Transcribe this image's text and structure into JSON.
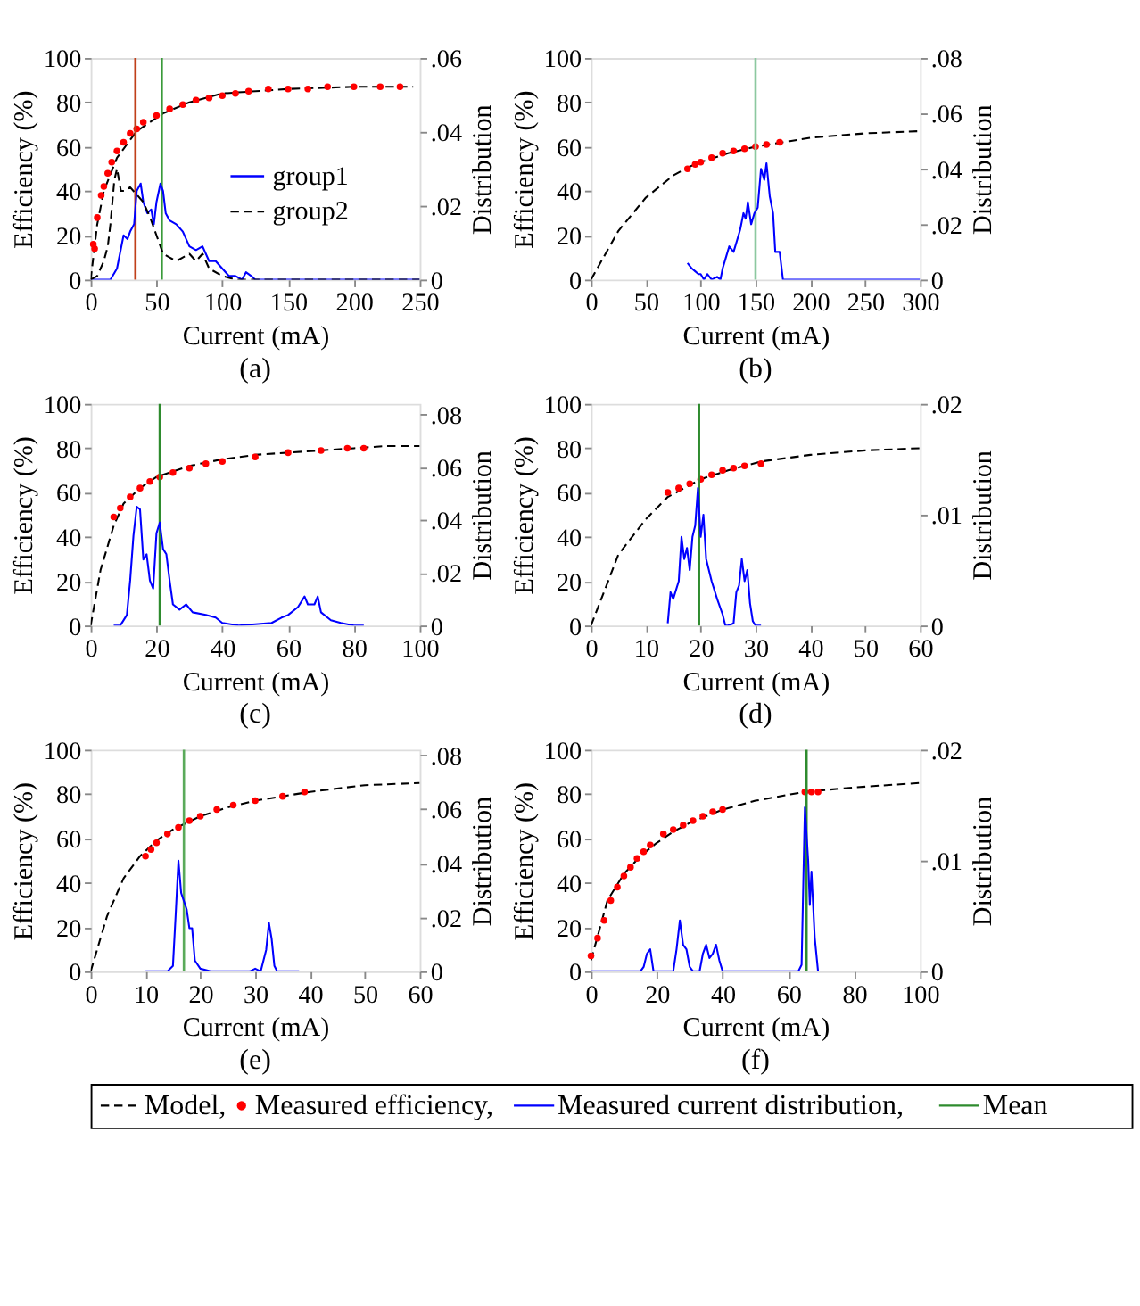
{
  "chart_data": [
    {
      "type": "line",
      "title": "(a)",
      "xlabel": "Current (mA)",
      "ylabel": "Efficiency (%)",
      "y2label": "Distribution",
      "xlim": [
        0,
        250
      ],
      "xticks": [
        0,
        50,
        100,
        150,
        200,
        250
      ],
      "ylim": [
        0,
        100
      ],
      "yticks": [
        0,
        20,
        40,
        60,
        80,
        100
      ],
      "y2lim": [
        0,
        0.06
      ],
      "y2ticks": [
        0,
        {
          "value": 0.02,
          "label": ".02"
        },
        {
          "value": 0.04,
          "label": ".04"
        },
        {
          "value": 0.06,
          "label": ".06"
        }
      ],
      "legend": "right",
      "series": [
        {
          "type": "line",
          "line_style": "dashed",
          "color": "#000000",
          "x": [
            0,
            5,
            10,
            20,
            35,
            55,
            75,
            100,
            150,
            200,
            245
          ],
          "values": [
            0,
            25,
            40,
            55,
            67,
            75,
            80,
            84,
            86,
            87,
            87
          ]
        },
        {
          "type": "scatter",
          "marker": "circle",
          "color": "#ff0000",
          "x": [
            2,
            3,
            5,
            8,
            10,
            13,
            16,
            20,
            25,
            30,
            35,
            40,
            50,
            60,
            70,
            80,
            90,
            100,
            110,
            120,
            135,
            150,
            165,
            180,
            200,
            220,
            235
          ],
          "values": [
            16,
            14,
            28,
            38,
            42,
            48,
            53,
            58,
            62,
            66,
            68,
            71,
            74,
            77,
            79,
            81,
            82,
            83,
            84,
            85,
            86,
            86,
            86,
            87,
            87,
            87,
            87
          ]
        },
        {
          "name": "group1",
          "type": "line",
          "axis": "y2",
          "line_style": "solid",
          "color": "#0000ff",
          "x": [
            0,
            15,
            20,
            25,
            28,
            30,
            33,
            35,
            38,
            40,
            43,
            46,
            48,
            50,
            53,
            55,
            57,
            60,
            65,
            70,
            75,
            80,
            85,
            90,
            95,
            100,
            105,
            110,
            115,
            118,
            122,
            125,
            150,
            200,
            250
          ],
          "values": [
            0,
            0,
            0.003,
            0.012,
            0.011,
            0.013,
            0.015,
            0.024,
            0.026,
            0.021,
            0.018,
            0.019,
            0.015,
            0.021,
            0.026,
            0.024,
            0.018,
            0.016,
            0.015,
            0.013,
            0.009,
            0.008,
            0.009,
            0.005,
            0.005,
            0.003,
            0.001,
            0.001,
            0,
            0.002,
            0.001,
            0,
            0,
            0,
            0
          ]
        },
        {
          "name": "group2",
          "type": "line",
          "axis": "y2",
          "line_style": "dashed",
          "color": "#000000",
          "x": [
            0,
            5,
            10,
            13,
            15,
            18,
            20,
            23,
            26,
            30,
            35,
            40,
            45,
            50,
            55,
            60,
            65,
            70,
            75,
            80,
            85,
            90,
            100,
            110,
            150,
            250
          ],
          "values": [
            0,
            0.001,
            0.005,
            0.009,
            0.015,
            0.027,
            0.03,
            0.024,
            0.024,
            0.025,
            0.023,
            0.021,
            0.017,
            0.012,
            0.007,
            0.006,
            0.005,
            0.006,
            0.007,
            0.005,
            0.007,
            0.003,
            0.001,
            0,
            0,
            0
          ]
        }
      ],
      "ref_lines": [
        {
          "axis": "x",
          "value": 34,
          "color": "#c0401a"
        },
        {
          "axis": "x",
          "value": 54,
          "color": "#3a9a3a"
        }
      ]
    },
    {
      "type": "line",
      "title": "(b)",
      "xlabel": "Current (mA)",
      "ylabel": "Efficiency (%)",
      "y2label": "Distribution",
      "xlim": [
        0,
        300
      ],
      "xticks": [
        0,
        50,
        100,
        150,
        200,
        250,
        300
      ],
      "ylim": [
        0,
        100
      ],
      "yticks": [
        0,
        20,
        40,
        60,
        80,
        100
      ],
      "y2lim": [
        0,
        0.08
      ],
      "y2ticks": [
        0,
        {
          "value": 0.02,
          "label": ".02"
        },
        {
          "value": 0.04,
          "label": ".04"
        },
        {
          "value": 0.06,
          "label": ".06"
        },
        {
          "value": 0.08,
          "label": ".08"
        }
      ],
      "series": [
        {
          "type": "line",
          "line_style": "dashed",
          "color": "#000000",
          "x": [
            0,
            25,
            50,
            75,
            90,
            100,
            125,
            150,
            175,
            200,
            250,
            300
          ],
          "values": [
            0,
            22,
            37,
            47,
            51,
            53,
            57,
            60,
            62,
            64,
            66,
            67
          ]
        },
        {
          "type": "scatter",
          "marker": "circle",
          "color": "#ff0000",
          "x": [
            88,
            95,
            100,
            110,
            120,
            130,
            140,
            150,
            160,
            172
          ],
          "values": [
            50,
            52,
            53,
            55,
            57,
            58,
            59,
            60,
            61,
            62
          ]
        },
        {
          "type": "line",
          "axis": "y2",
          "line_style": "solid",
          "color": "#0000ff",
          "x": [
            88,
            92,
            95,
            98,
            100,
            103,
            106,
            110,
            115,
            118,
            120,
            123,
            126,
            130,
            133,
            136,
            139,
            141,
            143,
            146,
            149,
            152,
            155,
            158,
            160,
            163,
            166,
            168,
            172,
            175,
            200,
            300
          ],
          "values": [
            0.006,
            0.004,
            0.003,
            0.002,
            0.002,
            0,
            0.002,
            0,
            0.001,
            0,
            0.004,
            0.008,
            0.012,
            0.01,
            0.014,
            0.018,
            0.024,
            0.022,
            0.028,
            0.02,
            0.024,
            0.026,
            0.04,
            0.036,
            0.042,
            0.03,
            0.024,
            0.01,
            0.01,
            0,
            0,
            0
          ]
        }
      ],
      "ref_lines": [
        {
          "axis": "x",
          "value": 150,
          "color": "#8cc8a0"
        }
      ]
    },
    {
      "type": "line",
      "title": "(c)",
      "xlabel": "Current (mA)",
      "ylabel": "Efficiency (%)",
      "y2label": "Distribution",
      "xlim": [
        0,
        100
      ],
      "xticks": [
        0,
        20,
        40,
        60,
        80,
        100
      ],
      "ylim": [
        0,
        100
      ],
      "yticks": [
        0,
        20,
        40,
        60,
        80,
        100
      ],
      "y2lim": [
        0,
        0.084
      ],
      "y2ticks": [
        0,
        {
          "value": 0.02,
          "label": ".02"
        },
        {
          "value": 0.04,
          "label": ".04"
        },
        {
          "value": 0.06,
          "label": ".06"
        },
        {
          "value": 0.08,
          "label": ".08"
        }
      ],
      "series": [
        {
          "type": "line",
          "line_style": "dashed",
          "color": "#000000",
          "x": [
            0,
            3,
            7,
            10,
            15,
            20,
            30,
            40,
            50,
            60,
            70,
            80,
            90,
            100
          ],
          "values": [
            0,
            25,
            45,
            55,
            62,
            67,
            72,
            75,
            77,
            78,
            79,
            80,
            81,
            81
          ]
        },
        {
          "type": "scatter",
          "marker": "circle",
          "color": "#ff0000",
          "x": [
            7,
            9,
            12,
            15,
            18,
            21,
            25,
            30,
            35,
            40,
            50,
            60,
            70,
            78,
            83
          ],
          "values": [
            49,
            53,
            58,
            62,
            65,
            67,
            69,
            71,
            73,
            74,
            76,
            78,
            79,
            80,
            80
          ]
        },
        {
          "type": "line",
          "axis": "y2",
          "line_style": "solid",
          "color": "#0000ff",
          "x": [
            7,
            9,
            11,
            12,
            13,
            14,
            15,
            16,
            17,
            18,
            19,
            20,
            21,
            22,
            23,
            24,
            25,
            27,
            29,
            31,
            35,
            38,
            40,
            45,
            55,
            58,
            60,
            63,
            65,
            66,
            68,
            69,
            70,
            73,
            76,
            80,
            83
          ],
          "values": [
            0,
            0,
            0.004,
            0.017,
            0.034,
            0.045,
            0.044,
            0.025,
            0.027,
            0.017,
            0.014,
            0.035,
            0.039,
            0.029,
            0.027,
            0.017,
            0.008,
            0.006,
            0.008,
            0.005,
            0.004,
            0.003,
            0.001,
            0,
            0.001,
            0.003,
            0.004,
            0.007,
            0.011,
            0.008,
            0.008,
            0.011,
            0.005,
            0.002,
            0.001,
            0,
            0
          ]
        }
      ],
      "ref_lines": [
        {
          "axis": "x",
          "value": 21,
          "color": "#2e8b2e"
        }
      ]
    },
    {
      "type": "line",
      "title": "(d)",
      "xlabel": "Current (mA)",
      "ylabel": "Efficiency (%)",
      "y2label": "Distribution",
      "xlim": [
        0,
        60
      ],
      "xticks": [
        0,
        10,
        20,
        30,
        40,
        50,
        60
      ],
      "ylim": [
        0,
        100
      ],
      "yticks": [
        0,
        20,
        40,
        60,
        80,
        100
      ],
      "y2lim": [
        0,
        0.02
      ],
      "y2ticks": [
        0,
        {
          "value": 0.01,
          "label": ".01"
        },
        {
          "value": 0.02,
          "label": ".02"
        }
      ],
      "series": [
        {
          "type": "line",
          "line_style": "dashed",
          "color": "#000000",
          "x": [
            0,
            5,
            10,
            14,
            20,
            25,
            31,
            40,
            50,
            60
          ],
          "values": [
            0,
            32,
            48,
            58,
            66,
            70,
            74,
            77,
            79,
            80
          ]
        },
        {
          "type": "scatter",
          "marker": "circle",
          "color": "#ff0000",
          "x": [
            14,
            16,
            18,
            20,
            22,
            24,
            26,
            28,
            31
          ],
          "values": [
            60,
            62,
            64,
            66,
            68,
            70,
            71,
            72,
            73
          ]
        },
        {
          "type": "line",
          "axis": "y2",
          "line_style": "solid",
          "color": "#0000ff",
          "x": [
            14,
            14.5,
            15,
            16,
            16.5,
            17,
            17.5,
            18,
            18.5,
            19,
            19.5,
            20,
            20.5,
            21,
            22,
            23,
            24,
            24.5,
            25,
            26,
            26.5,
            27,
            27.5,
            28,
            28.5,
            29,
            29.5,
            30,
            31
          ],
          "values": [
            0.0002,
            0.003,
            0.0024,
            0.004,
            0.008,
            0.006,
            0.007,
            0.005,
            0.008,
            0.009,
            0.0124,
            0.008,
            0.01,
            0.006,
            0.004,
            0.0024,
            0.001,
            0,
            0,
            0.0002,
            0.003,
            0.0036,
            0.006,
            0.004,
            0.005,
            0.002,
            0.0004,
            0,
            0
          ]
        }
      ],
      "ref_lines": [
        {
          "axis": "x",
          "value": 19.7,
          "color": "#2e8b2e"
        }
      ]
    },
    {
      "type": "line",
      "title": "(e)",
      "xlabel": "Current (mA)",
      "ylabel": "Efficiency (%)",
      "y2label": "Distribution",
      "xlim": [
        0,
        60
      ],
      "xticks": [
        0,
        10,
        20,
        30,
        40,
        50,
        60
      ],
      "ylim": [
        0,
        100
      ],
      "yticks": [
        0,
        20,
        40,
        60,
        80,
        100
      ],
      "y2lim": [
        0,
        0.082
      ],
      "y2ticks": [
        0,
        {
          "value": 0.02,
          "label": ".02"
        },
        {
          "value": 0.04,
          "label": ".04"
        },
        {
          "value": 0.06,
          "label": ".06"
        },
        {
          "value": 0.08,
          "label": ".08"
        }
      ],
      "series": [
        {
          "type": "line",
          "line_style": "dashed",
          "color": "#000000",
          "x": [
            0,
            3,
            6,
            9,
            12,
            15,
            20,
            25,
            30,
            40,
            50,
            60
          ],
          "values": [
            0,
            25,
            42,
            52,
            59,
            64,
            70,
            74,
            77,
            81,
            84,
            85
          ]
        },
        {
          "type": "scatter",
          "marker": "circle",
          "color": "#ff0000",
          "x": [
            10,
            11,
            12,
            14,
            16,
            18,
            20,
            23,
            26,
            30,
            35,
            39
          ],
          "values": [
            52,
            55,
            58,
            62,
            65,
            68,
            70,
            73,
            75,
            77,
            79,
            81
          ]
        },
        {
          "type": "line",
          "axis": "y2",
          "line_style": "solid",
          "color": "#0000ff",
          "x": [
            10,
            14,
            15,
            15.5,
            16,
            16.5,
            17,
            17.5,
            18,
            18.5,
            19,
            20,
            22,
            29,
            30,
            31,
            32,
            32.5,
            33,
            33.5,
            34,
            38
          ],
          "values": [
            0,
            0,
            0.002,
            0.021,
            0.041,
            0.029,
            0.026,
            0.023,
            0.016,
            0.016,
            0.004,
            0.001,
            0,
            0,
            0.001,
            0,
            0.008,
            0.018,
            0.012,
            0.002,
            0,
            0
          ]
        }
      ],
      "ref_lines": [
        {
          "axis": "x",
          "value": 17,
          "color": "#5aaa5a"
        }
      ]
    },
    {
      "type": "line",
      "title": "(f)",
      "xlabel": "Current (mA)",
      "ylabel": "Efficiency (%)",
      "y2label": "Distribution",
      "xlim": [
        0,
        100
      ],
      "xticks": [
        0,
        20,
        40,
        60,
        80,
        100
      ],
      "ylim": [
        0,
        100
      ],
      "yticks": [
        0,
        20,
        40,
        60,
        80,
        100
      ],
      "y2lim": [
        0,
        0.02
      ],
      "y2ticks": [
        0,
        {
          "value": 0.01,
          "label": ".01"
        },
        {
          "value": 0.02,
          "label": ".02"
        }
      ],
      "legend": "bottom",
      "series": [
        {
          "name": "Model,",
          "type": "line",
          "line_style": "dashed",
          "color": "#000000",
          "x": [
            0,
            5,
            10,
            15,
            20,
            25,
            30,
            40,
            50,
            65,
            80,
            100
          ],
          "values": [
            5,
            32,
            44,
            52,
            58,
            63,
            67,
            73,
            77,
            81,
            83,
            85
          ]
        },
        {
          "name": "Measured efficiency,",
          "type": "scatter",
          "marker": "circle",
          "color": "#ff0000",
          "x": [
            0,
            2,
            4,
            6,
            8,
            10,
            12,
            14,
            16,
            18,
            22,
            25,
            28,
            31,
            34,
            37,
            40,
            65,
            67,
            69
          ],
          "values": [
            7,
            15,
            23,
            32,
            38,
            43,
            47,
            51,
            54,
            57,
            62,
            64,
            66,
            68,
            70,
            72,
            73,
            81,
            81,
            81
          ]
        },
        {
          "name": "Measured current distribution,",
          "type": "line",
          "axis": "y2",
          "line_style": "solid",
          "color": "#0000ff",
          "x": [
            0,
            15,
            16,
            17,
            18,
            19,
            21,
            25,
            26,
            27,
            28,
            29,
            30,
            31,
            33,
            34,
            35,
            36,
            37,
            38,
            39,
            40,
            63,
            64,
            65,
            66,
            66.5,
            67,
            68,
            69
          ],
          "values": [
            0,
            0,
            0.0004,
            0.0016,
            0.002,
            0,
            0,
            0,
            0.002,
            0.0046,
            0.0024,
            0.002,
            0.0004,
            0,
            0,
            0.0016,
            0.0024,
            0.0012,
            0.0016,
            0.0024,
            0.001,
            0,
            0,
            0.0006,
            0.0148,
            0.01,
            0.006,
            0.009,
            0.003,
            0
          ]
        }
      ],
      "ref_lines": [
        {
          "axis": "x",
          "value": 65.5,
          "color": "#2e8b2e",
          "label": "Mean"
        }
      ]
    }
  ]
}
